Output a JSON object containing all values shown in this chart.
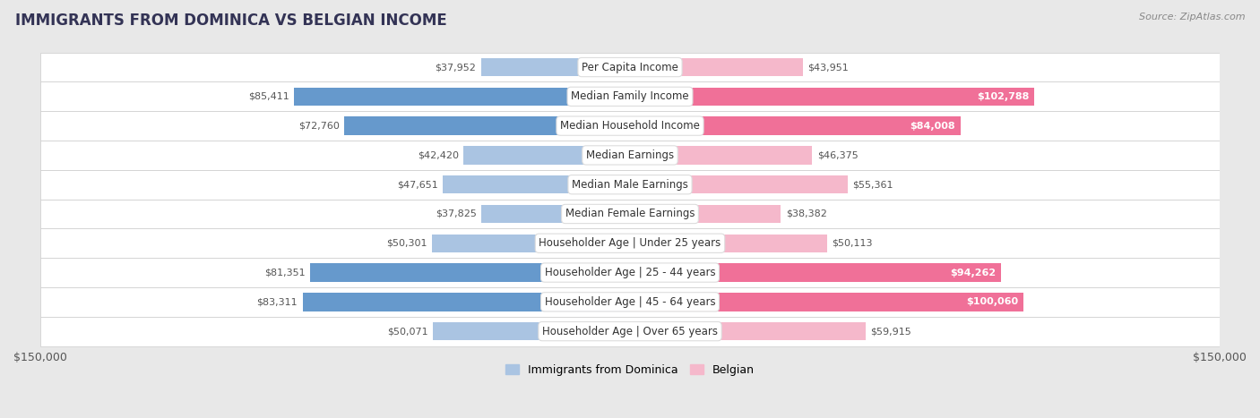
{
  "title": "IMMIGRANTS FROM DOMINICA VS BELGIAN INCOME",
  "source": "Source: ZipAtlas.com",
  "categories": [
    "Per Capita Income",
    "Median Family Income",
    "Median Household Income",
    "Median Earnings",
    "Median Male Earnings",
    "Median Female Earnings",
    "Householder Age | Under 25 years",
    "Householder Age | 25 - 44 years",
    "Householder Age | 45 - 64 years",
    "Householder Age | Over 65 years"
  ],
  "dominica_values": [
    37952,
    85411,
    72760,
    42420,
    47651,
    37825,
    50301,
    81351,
    83311,
    50071
  ],
  "belgian_values": [
    43951,
    102788,
    84008,
    46375,
    55361,
    38382,
    50113,
    94262,
    100060,
    59915
  ],
  "dominica_labels": [
    "$37,952",
    "$85,411",
    "$72,760",
    "$42,420",
    "$47,651",
    "$37,825",
    "$50,301",
    "$81,351",
    "$83,311",
    "$50,071"
  ],
  "belgian_labels": [
    "$43,951",
    "$102,788",
    "$84,008",
    "$46,375",
    "$55,361",
    "$38,382",
    "$50,113",
    "$94,262",
    "$100,060",
    "$59,915"
  ],
  "dominica_color_light": "#aac4e2",
  "dominica_color_dark": "#6699cc",
  "belgian_color_light": "#f5b8cb",
  "belgian_color_dark": "#f07098",
  "xmax": 150000,
  "bar_height": 0.62,
  "outer_bg": "#e8e8e8",
  "row_bg": "#ffffff",
  "legend_dominica": "Immigrants from Dominica",
  "legend_belgian": "Belgian",
  "xlabel_left": "$150,000",
  "xlabel_right": "$150,000",
  "dark_indices": [
    1,
    2,
    7,
    8
  ],
  "title_color": "#333355",
  "label_color_dark": "#555555",
  "source_color": "#888888"
}
